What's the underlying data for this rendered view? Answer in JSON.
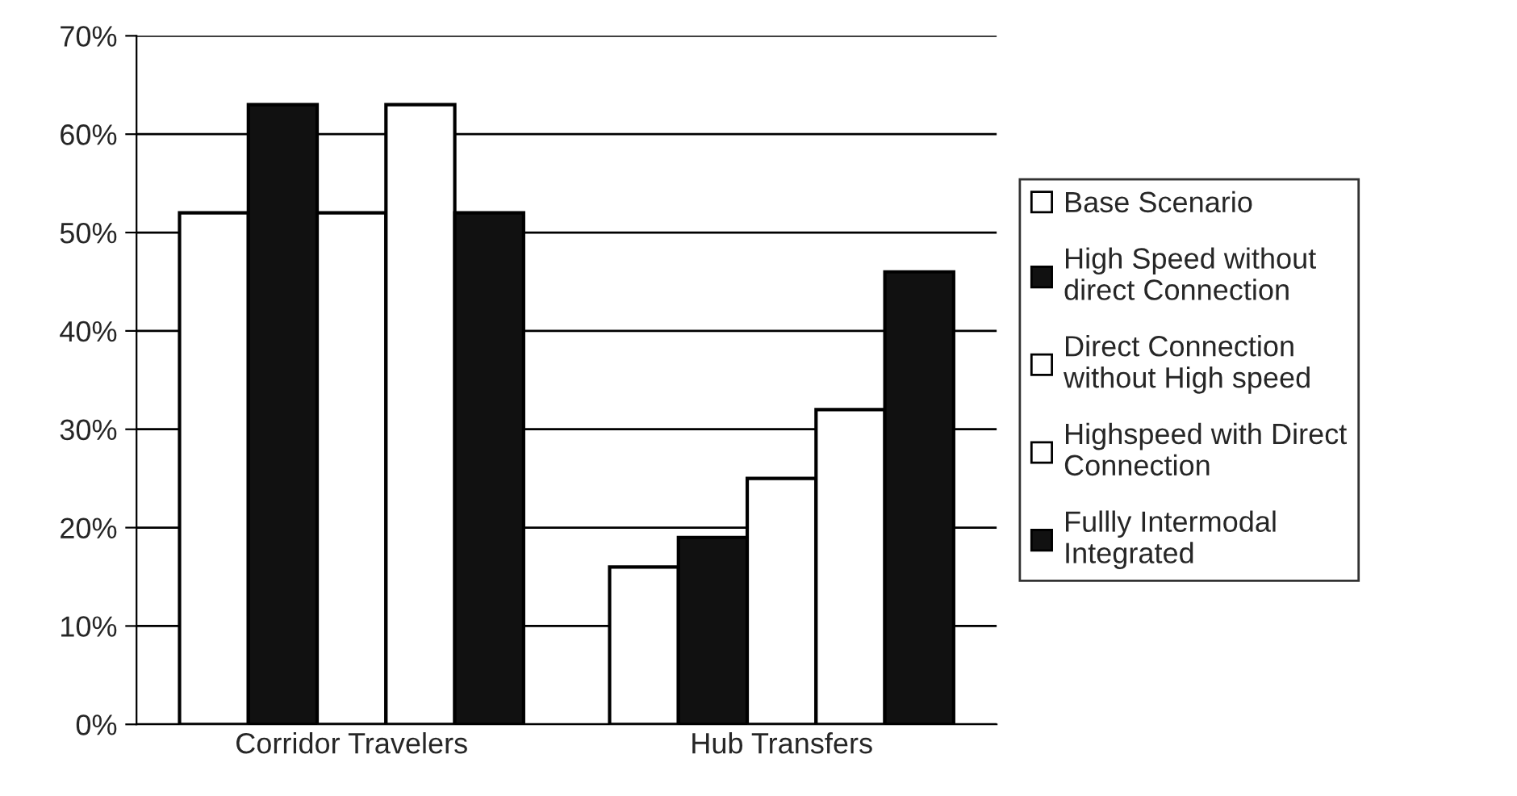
{
  "chart_data": {
    "type": "bar",
    "categories": [
      "Corridor Travelers",
      "Hub Transfers"
    ],
    "series": [
      {
        "name": "Base Scenario",
        "color": "#ffffff",
        "values": [
          52,
          16
        ]
      },
      {
        "name": "High Speed without\ndirect Connection",
        "color": "#111111",
        "values": [
          63,
          19
        ]
      },
      {
        "name": "Direct Connection\nwithout High speed",
        "color": "#ffffff",
        "values": [
          52,
          25
        ]
      },
      {
        "name": "Highspeed with Direct\nConnection",
        "color": "#ffffff",
        "values": [
          63,
          32
        ]
      },
      {
        "name": "Fullly Intermodal\nIntegrated",
        "color": "#111111",
        "values": [
          52,
          46
        ]
      }
    ],
    "ylim": [
      0,
      70
    ],
    "yticks": [
      {
        "value": 0,
        "label": "0%"
      },
      {
        "value": 10,
        "label": "10%"
      },
      {
        "value": 20,
        "label": "20%"
      },
      {
        "value": 30,
        "label": "30%"
      },
      {
        "value": 40,
        "label": "40%"
      },
      {
        "value": 50,
        "label": "50%"
      },
      {
        "value": 60,
        "label": "60%"
      },
      {
        "value": 70,
        "label": "70%"
      }
    ],
    "grid": "y",
    "legend": "right"
  }
}
